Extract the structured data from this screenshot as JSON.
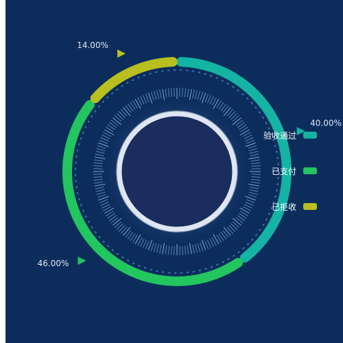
{
  "chart_data": {
    "type": "pie",
    "variant": "ring",
    "categories": [
      "验收通过",
      "已支付",
      "已拒收"
    ],
    "values": [
      40.0,
      46.0,
      14.0
    ],
    "percent_labels": [
      "40.00%",
      "46.00%",
      "14.00%"
    ],
    "colors": [
      "#14b3a3",
      "#22c55e",
      "#b8bf1e"
    ],
    "legend_position": "right"
  }
}
